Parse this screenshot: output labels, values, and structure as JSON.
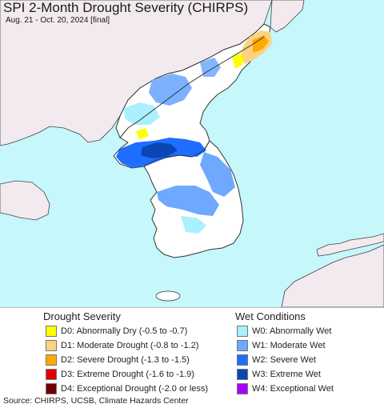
{
  "header": {
    "title": "SPI 2-Month Drought Severity (CHIRPS)",
    "subtitle": "Aug. 21 - Oct. 20, 2024 [final]"
  },
  "map": {
    "sea_color": "#c5f7fb",
    "land_color": "#ffffff",
    "foreign_land_color": "#f2eaee",
    "border_color": "#333333"
  },
  "legend": {
    "drought": {
      "heading": "Drought Severity",
      "items": [
        {
          "label": "D0: Abnormally Dry (-0.5 to -0.7)",
          "color": "#ffff00"
        },
        {
          "label": "D1: Moderate Drought (-0.8 to -1.2)",
          "color": "#fcd37f"
        },
        {
          "label": "D2: Severe Drought (-1.3 to -1.5)",
          "color": "#ffaa00"
        },
        {
          "label": "D3: Extreme Drought (-1.6 to -1.9)",
          "color": "#e60000"
        },
        {
          "label": "D4: Exceptional Drought (-2.0 or less)",
          "color": "#730000"
        }
      ]
    },
    "wet": {
      "heading": "Wet Conditions",
      "items": [
        {
          "label": "W0: Abnormally Wet",
          "color": "#aaf0ff"
        },
        {
          "label": "W1: Moderate Wet",
          "color": "#6ea8ff"
        },
        {
          "label": "W2: Severe Wet",
          "color": "#1e6eff"
        },
        {
          "label": "W3: Extreme Wet",
          "color": "#0a46b4"
        },
        {
          "label": "W4: Exceptional Wet",
          "color": "#aa00ff"
        }
      ]
    }
  },
  "footer": {
    "source": "Source: CHIRPS, UCSB, Climate Hazards Center"
  }
}
